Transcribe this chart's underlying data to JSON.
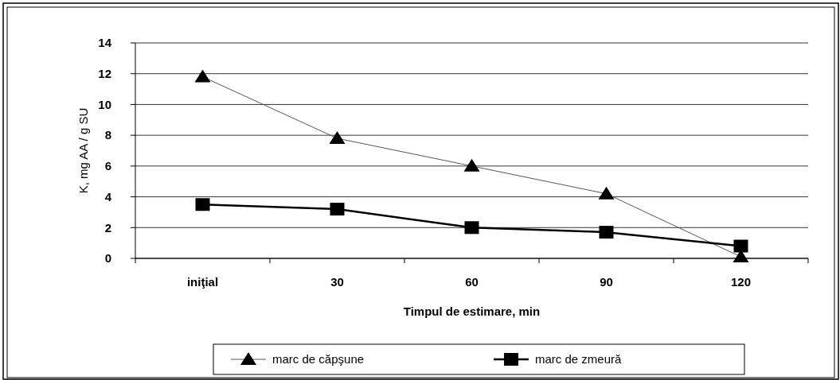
{
  "chart_data": {
    "type": "line",
    "xlabel": "Timpul de estimare, min",
    "ylabel": "K, mg AA / g SU",
    "categories": [
      "iniţial",
      "30",
      "60",
      "90",
      "120"
    ],
    "series": [
      {
        "name": "marc de căpşune",
        "color": "#000000",
        "marker": "triangle",
        "values": [
          11.8,
          7.8,
          6.0,
          4.2,
          0.1
        ]
      },
      {
        "name": "marc de zmeură",
        "color": "#000000",
        "marker": "square",
        "values": [
          3.5,
          3.2,
          2.0,
          1.7,
          0.8
        ]
      }
    ],
    "ylim": [
      0,
      14
    ],
    "yticks": [
      0,
      2,
      4,
      6,
      8,
      10,
      12,
      14
    ],
    "grid": "y",
    "legend": "bottom"
  }
}
